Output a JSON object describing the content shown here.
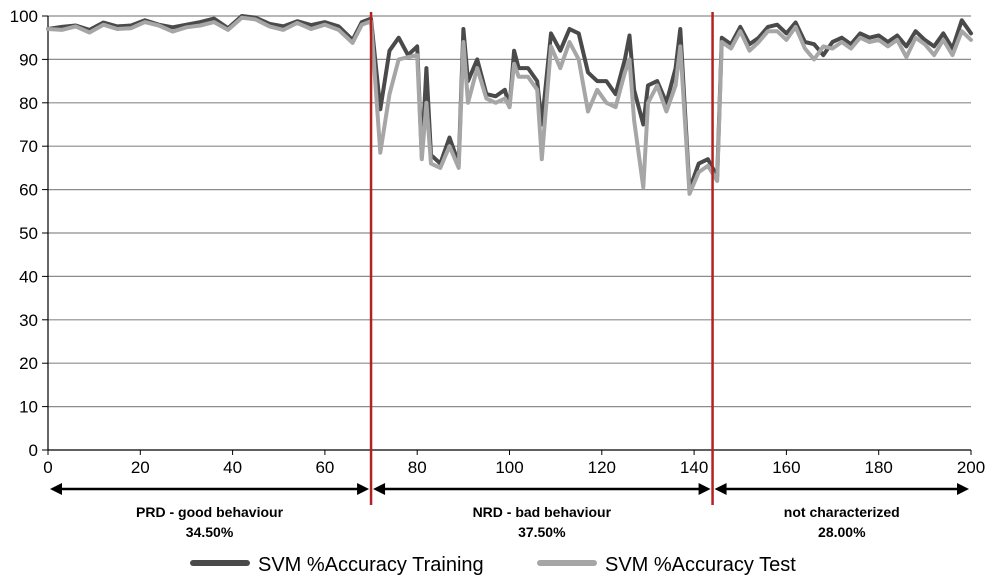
{
  "chart_data": {
    "type": "line",
    "title": "",
    "xlabel": "",
    "ylabel": "",
    "xlim": [
      0,
      200
    ],
    "ylim": [
      0,
      100
    ],
    "xticks": [
      0,
      20,
      40,
      60,
      80,
      100,
      120,
      140,
      160,
      180,
      200
    ],
    "yticks": [
      0,
      10,
      20,
      30,
      40,
      50,
      60,
      70,
      80,
      90,
      100
    ],
    "grid": "horizontal",
    "legend_position": "bottom",
    "colors": {
      "training": "#4a4a4a",
      "test": "#a6a6a6",
      "divider": "#b22222",
      "grid": "#8c8c8c"
    },
    "series": [
      {
        "name": "SVM %Accuracy Training",
        "points": [
          [
            0,
            97
          ],
          [
            3,
            97.5
          ],
          [
            6,
            97.8
          ],
          [
            9,
            96.8
          ],
          [
            12,
            98.5
          ],
          [
            15,
            97.6
          ],
          [
            18,
            97.8
          ],
          [
            21,
            99
          ],
          [
            24,
            98
          ],
          [
            27,
            97.4
          ],
          [
            30,
            98
          ],
          [
            33,
            98.6
          ],
          [
            36,
            99.4
          ],
          [
            39,
            97.2
          ],
          [
            42,
            100
          ],
          [
            45,
            99.6
          ],
          [
            48,
            98.2
          ],
          [
            51,
            97.6
          ],
          [
            54,
            98.8
          ],
          [
            57,
            97.9
          ],
          [
            60,
            98.6
          ],
          [
            63,
            97.6
          ],
          [
            66,
            94.5
          ],
          [
            68,
            98.6
          ],
          [
            70,
            99.4
          ],
          [
            72,
            78.5
          ],
          [
            74,
            92
          ],
          [
            76,
            95
          ],
          [
            78,
            91
          ],
          [
            80,
            93
          ],
          [
            81,
            67.5
          ],
          [
            82,
            88
          ],
          [
            83,
            68
          ],
          [
            85,
            66
          ],
          [
            87,
            72
          ],
          [
            89,
            66
          ],
          [
            90,
            97
          ],
          [
            91,
            85
          ],
          [
            93,
            90
          ],
          [
            95,
            82
          ],
          [
            97,
            81.5
          ],
          [
            99,
            83
          ],
          [
            100,
            79
          ],
          [
            101,
            92
          ],
          [
            102,
            88
          ],
          [
            104,
            88
          ],
          [
            106,
            85
          ],
          [
            107,
            75
          ],
          [
            109,
            96
          ],
          [
            111,
            92
          ],
          [
            113,
            97
          ],
          [
            115,
            96
          ],
          [
            117,
            87
          ],
          [
            119,
            85
          ],
          [
            121,
            85
          ],
          [
            123,
            82
          ],
          [
            125,
            90
          ],
          [
            126,
            95.5
          ],
          [
            127,
            83
          ],
          [
            129,
            75
          ],
          [
            130,
            84
          ],
          [
            132,
            85
          ],
          [
            134,
            80
          ],
          [
            136,
            88
          ],
          [
            137,
            97
          ],
          [
            139,
            60
          ],
          [
            141,
            66
          ],
          [
            143,
            67
          ],
          [
            145,
            63
          ],
          [
            146,
            95
          ],
          [
            148,
            93.5
          ],
          [
            150,
            97.5
          ],
          [
            152,
            93.5
          ],
          [
            154,
            95
          ],
          [
            156,
            97.5
          ],
          [
            158,
            98
          ],
          [
            160,
            96
          ],
          [
            162,
            98.5
          ],
          [
            164,
            94
          ],
          [
            166,
            93.5
          ],
          [
            168,
            91
          ],
          [
            170,
            94
          ],
          [
            172,
            95
          ],
          [
            174,
            93.5
          ],
          [
            176,
            96
          ],
          [
            178,
            95
          ],
          [
            180,
            95.5
          ],
          [
            182,
            94
          ],
          [
            184,
            95.5
          ],
          [
            186,
            93
          ],
          [
            188,
            96.5
          ],
          [
            190,
            94.5
          ],
          [
            192,
            93
          ],
          [
            194,
            96
          ],
          [
            196,
            92.5
          ],
          [
            198,
            99
          ],
          [
            200,
            96
          ]
        ]
      },
      {
        "name": "SVM %Accuracy Test",
        "points": [
          [
            0,
            97
          ],
          [
            3,
            96.8
          ],
          [
            6,
            97.6
          ],
          [
            9,
            96.2
          ],
          [
            12,
            98
          ],
          [
            15,
            97
          ],
          [
            18,
            97.2
          ],
          [
            21,
            98.6
          ],
          [
            24,
            97.8
          ],
          [
            27,
            96.4
          ],
          [
            30,
            97.4
          ],
          [
            33,
            97.8
          ],
          [
            36,
            98.6
          ],
          [
            39,
            96.8
          ],
          [
            42,
            99.6
          ],
          [
            45,
            99.2
          ],
          [
            48,
            97.6
          ],
          [
            51,
            96.8
          ],
          [
            54,
            98.4
          ],
          [
            57,
            97
          ],
          [
            60,
            98
          ],
          [
            63,
            96.8
          ],
          [
            66,
            93.8
          ],
          [
            68,
            98
          ],
          [
            70,
            98.8
          ],
          [
            72,
            68.5
          ],
          [
            74,
            82
          ],
          [
            76,
            90
          ],
          [
            78,
            90.5
          ],
          [
            80,
            91
          ],
          [
            81,
            67
          ],
          [
            82,
            80
          ],
          [
            83,
            66
          ],
          [
            85,
            65
          ],
          [
            87,
            70
          ],
          [
            89,
            65
          ],
          [
            90,
            94
          ],
          [
            91,
            80
          ],
          [
            93,
            88
          ],
          [
            95,
            81
          ],
          [
            97,
            80
          ],
          [
            99,
            81
          ],
          [
            100,
            79
          ],
          [
            101,
            89
          ],
          [
            102,
            86
          ],
          [
            104,
            86
          ],
          [
            106,
            83
          ],
          [
            107,
            67
          ],
          [
            109,
            93
          ],
          [
            111,
            88
          ],
          [
            113,
            94
          ],
          [
            115,
            90
          ],
          [
            117,
            78
          ],
          [
            119,
            83
          ],
          [
            121,
            80
          ],
          [
            123,
            79
          ],
          [
            125,
            87
          ],
          [
            126,
            90
          ],
          [
            127,
            76
          ],
          [
            129,
            60.5
          ],
          [
            130,
            80
          ],
          [
            132,
            84
          ],
          [
            134,
            78
          ],
          [
            136,
            84
          ],
          [
            137,
            93
          ],
          [
            139,
            59
          ],
          [
            141,
            64
          ],
          [
            143,
            65.5
          ],
          [
            145,
            62
          ],
          [
            146,
            94
          ],
          [
            148,
            92.5
          ],
          [
            150,
            96.5
          ],
          [
            152,
            92
          ],
          [
            154,
            94
          ],
          [
            156,
            96.5
          ],
          [
            158,
            96.5
          ],
          [
            160,
            94.5
          ],
          [
            162,
            97.5
          ],
          [
            164,
            92.5
          ],
          [
            166,
            90
          ],
          [
            168,
            93
          ],
          [
            170,
            92.5
          ],
          [
            172,
            94
          ],
          [
            174,
            92.5
          ],
          [
            176,
            95
          ],
          [
            178,
            94
          ],
          [
            180,
            94.5
          ],
          [
            182,
            93
          ],
          [
            184,
            94.5
          ],
          [
            186,
            90.5
          ],
          [
            188,
            95
          ],
          [
            190,
            93.5
          ],
          [
            192,
            91
          ],
          [
            194,
            94.5
          ],
          [
            196,
            91
          ],
          [
            198,
            96.5
          ],
          [
            200,
            94.5
          ]
        ]
      }
    ],
    "dividers": [
      70,
      144
    ],
    "regions": [
      {
        "from": 0,
        "to": 70,
        "label": "PRD - good behaviour",
        "pct": "34.50%"
      },
      {
        "from": 70,
        "to": 144,
        "label": "NRD - bad behaviour",
        "pct": "37.50%"
      },
      {
        "from": 144,
        "to": 200,
        "label": "not characterized",
        "pct": "28.00%"
      }
    ]
  }
}
